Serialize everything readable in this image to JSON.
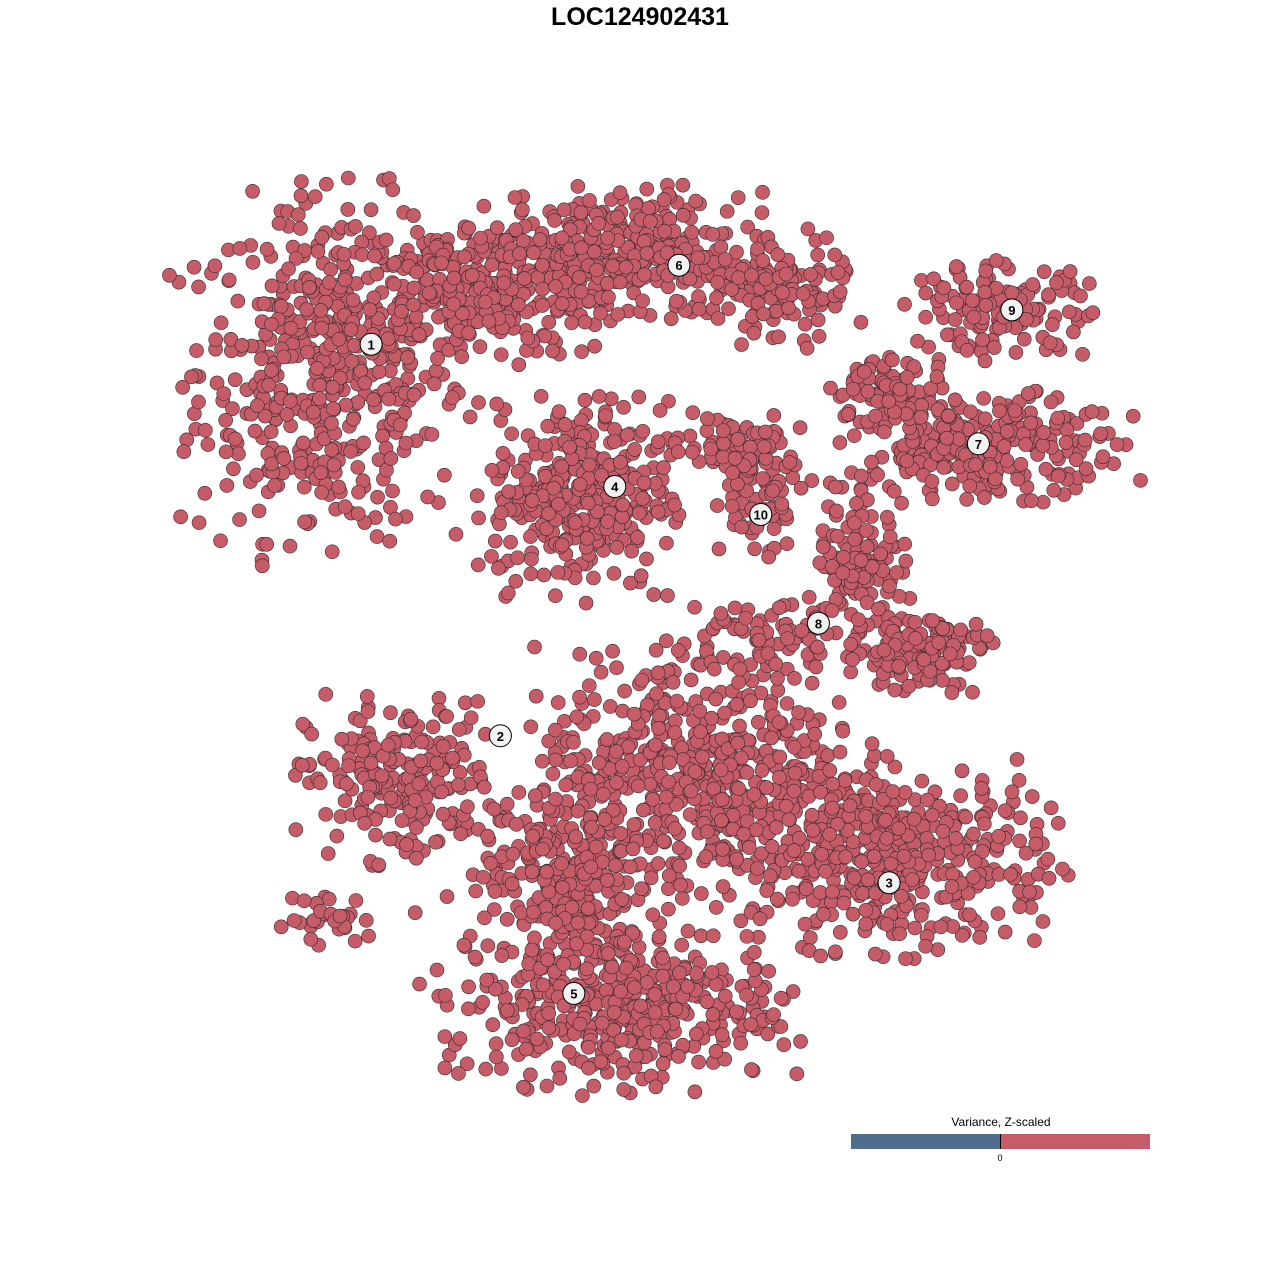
{
  "chart_data": {
    "type": "scatter",
    "title": "LOC124902431",
    "xlabel": "",
    "ylabel": "",
    "grid": false,
    "axes_visible": false,
    "point_color": "#c55c68",
    "point_edge_color": "#3a2a2c",
    "clusters": [
      {
        "id": "1",
        "label_pos": [
          -31.6,
          31.8
        ],
        "blobs": [
          {
            "center": [
              -36.0,
              29.0
            ],
            "spread": [
              12.9,
              16.1
            ],
            "n": 500
          },
          {
            "center": [
              -20.4,
              37.6
            ],
            "spread": [
              14.0,
              6.5
            ],
            "n": 300
          }
        ]
      },
      {
        "id": "2",
        "label_pos": [
          -17.7,
          -10.3
        ],
        "blobs": [
          {
            "center": [
              -28.5,
              -15.1
            ],
            "spread": [
              9.1,
              7.5
            ],
            "n": 220
          },
          {
            "center": [
              -36.0,
              -30.1
            ],
            "spread": [
              4.3,
              2.7
            ],
            "n": 30
          }
        ]
      },
      {
        "id": "3",
        "label_pos": [
          24.1,
          -26.1
        ],
        "blobs": [
          {
            "center": [
              25.3,
              -23.7
            ],
            "spread": [
              14.0,
              8.6
            ],
            "n": 400
          }
        ]
      },
      {
        "id": "4",
        "label_pos": [
          -5.4,
          16.5
        ],
        "blobs": [
          {
            "center": [
              -9.1,
              15.6
            ],
            "spread": [
              8.6,
              9.1
            ],
            "n": 350
          }
        ]
      },
      {
        "id": "5",
        "label_pos": [
          -9.8,
          -38.0
        ],
        "blobs": [
          {
            "center": [
              -5.9,
              -38.7
            ],
            "spread": [
              16.1,
              8.1
            ],
            "n": 450
          },
          {
            "center": [
              -11.3,
              -24.7
            ],
            "spread": [
              7.5,
              8.6
            ],
            "n": 200
          },
          {
            "center": [
              3.8,
              -15.1
            ],
            "spread": [
              16.1,
              11.8
            ],
            "n": 600
          }
        ]
      },
      {
        "id": "6",
        "label_pos": [
          1.5,
          40.3
        ],
        "blobs": [
          {
            "center": [
              -4.8,
              41.9
            ],
            "spread": [
              11.8,
              5.4
            ],
            "n": 300
          },
          {
            "center": [
              10.2,
              37.6
            ],
            "spread": [
              8.6,
              5.4
            ],
            "n": 150
          }
        ]
      },
      {
        "id": "7",
        "label_pos": [
          33.7,
          21.1
        ],
        "blobs": [
          {
            "center": [
              34.9,
              20.9
            ],
            "spread": [
              12.9,
              4.8
            ],
            "n": 250
          },
          {
            "center": [
              24.2,
              26.9
            ],
            "spread": [
              5.4,
              3.2
            ],
            "n": 80
          }
        ]
      },
      {
        "id": "8",
        "label_pos": [
          16.5,
          1.8
        ],
        "blobs": [
          {
            "center": [
              21.0,
              8.6
            ],
            "spread": [
              4.3,
              8.6
            ],
            "n": 120
          },
          {
            "center": [
              27.4,
              -1.1
            ],
            "spread": [
              6.5,
              3.8
            ],
            "n": 120
          },
          {
            "center": [
              10.2,
              0.0
            ],
            "spread": [
              8.6,
              3.2
            ],
            "n": 80
          }
        ]
      },
      {
        "id": "9",
        "label_pos": [
          37.3,
          35.5
        ],
        "blobs": [
          {
            "center": [
              36.0,
              35.5
            ],
            "spread": [
              8.6,
              4.3
            ],
            "n": 140
          }
        ]
      },
      {
        "id": "10",
        "label_pos": [
          10.3,
          13.5
        ],
        "blobs": [
          {
            "center": [
              10.2,
              16.1
            ],
            "spread": [
              4.8,
              6.5
            ],
            "n": 80
          },
          {
            "center": [
              7.0,
              21.5
            ],
            "spread": [
              6.5,
              2.7
            ],
            "n": 60
          }
        ]
      }
    ],
    "legend": {
      "title": "Variance, Z-scaled",
      "tick_label": "0",
      "low_color": "#4f6d8f",
      "high_color": "#c55c68",
      "placement": "bottom-right"
    }
  }
}
